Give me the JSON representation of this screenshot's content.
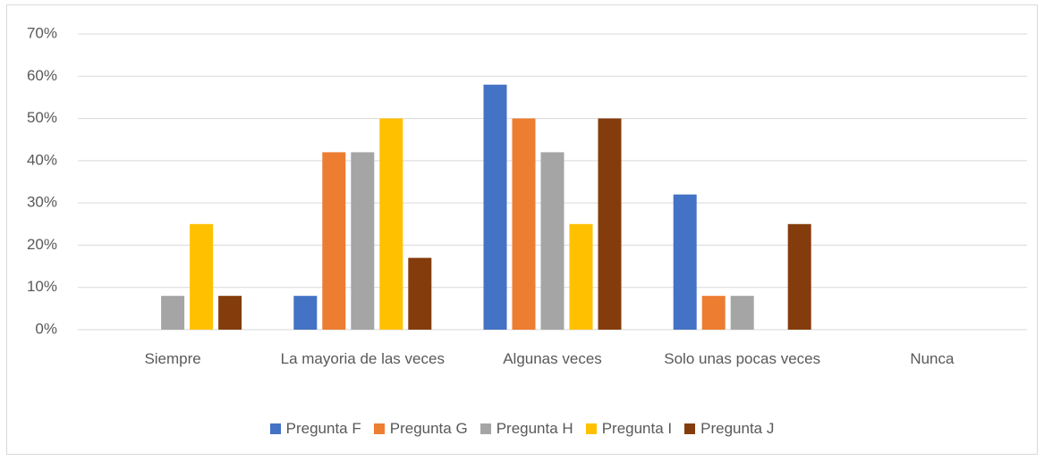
{
  "chart_data": {
    "type": "bar",
    "categories": [
      "Siempre",
      "La mayoria de las veces",
      "Algunas veces",
      "Solo unas pocas veces",
      "Nunca"
    ],
    "series": [
      {
        "name": "Pregunta F",
        "color": "#4472c4",
        "values": [
          0,
          8,
          58,
          32,
          0
        ]
      },
      {
        "name": "Pregunta G",
        "color": "#ed7d31",
        "values": [
          0,
          42,
          50,
          8,
          0
        ]
      },
      {
        "name": "Pregunta H",
        "color": "#a5a5a5",
        "values": [
          8,
          42,
          42,
          8,
          0
        ]
      },
      {
        "name": "Pregunta I",
        "color": "#ffc000",
        "values": [
          25,
          50,
          25,
          0,
          0
        ]
      },
      {
        "name": "Pregunta J",
        "color": "#843c0c",
        "values": [
          8,
          17,
          50,
          25,
          0
        ]
      }
    ],
    "ylim": [
      0,
      70
    ],
    "yticks": [
      {
        "value": 0,
        "label": "0%"
      },
      {
        "value": 10,
        "label": "10%"
      },
      {
        "value": 20,
        "label": "20%"
      },
      {
        "value": 30,
        "label": "30%"
      },
      {
        "value": 40,
        "label": "40%"
      },
      {
        "value": 50,
        "label": "50%"
      },
      {
        "value": 60,
        "label": "60%"
      },
      {
        "value": 70,
        "label": "70%"
      }
    ],
    "grid": true,
    "legend": "bottom"
  }
}
